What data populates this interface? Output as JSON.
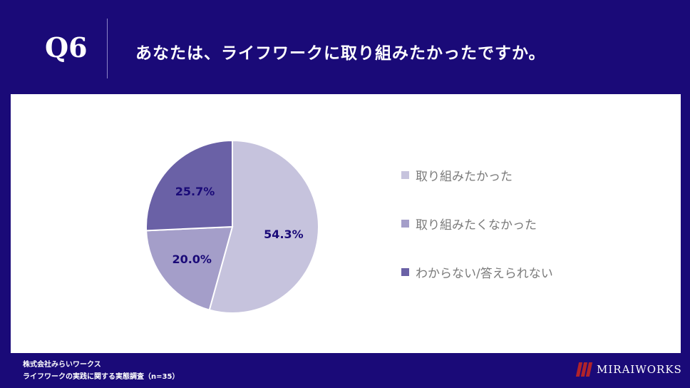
{
  "header": {
    "qnum": "Q6",
    "question": "あなたは、ライフワークに取り組みたかったですか。"
  },
  "chart_data": {
    "type": "pie",
    "slices": [
      {
        "label": "取り組みたかった",
        "value": 54.3,
        "value_label": "54.3%",
        "color": "#c6c3dd"
      },
      {
        "label": "取り組みたくなかった",
        "value": 20.0,
        "value_label": "20.0%",
        "color": "#a49ec9"
      },
      {
        "label": "わからない/答えられない",
        "value": 25.7,
        "value_label": "25.7%",
        "color": "#6a61a6"
      }
    ],
    "start": "12 o'clock",
    "direction": "clockwise",
    "legend_position": "right",
    "label_color": "#1a0a78"
  },
  "footer": {
    "line1": "株式会社みらいワークス",
    "line2": "ライフワークの実践に関する実態調査（n=35）"
  },
  "logo": {
    "text": "MIRAIWORKS",
    "color": "#b0232a"
  }
}
